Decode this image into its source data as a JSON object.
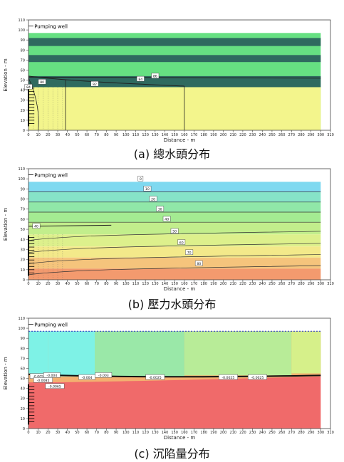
{
  "captions": [
    "(a)  總水頭分布",
    "(b)  壓力水頭分布",
    "(c)  沉陷量分布"
  ],
  "well_label": "Pumping well",
  "xlabel": "Distance - m",
  "ylabel": "Elevation - m",
  "x_ticks": [
    0,
    10,
    20,
    30,
    40,
    50,
    60,
    70,
    80,
    90,
    100,
    110,
    120,
    130,
    140,
    150,
    160,
    170,
    180,
    190,
    200,
    210,
    220,
    230,
    240,
    250,
    260,
    270,
    280,
    290,
    300,
    310
  ],
  "y_ticks": [
    0,
    10,
    20,
    30,
    40,
    50,
    60,
    70,
    80,
    90,
    100,
    110
  ],
  "colors": {
    "green": "#66e082",
    "dark_teal": "#2f6a5f",
    "yellow": "#f3f58c",
    "red": "#f06a6a",
    "cyan": "#7ef2e6",
    "mint": "#9ae8a8",
    "lime": "#d6f08a"
  },
  "panel_a": {
    "contour_labels": [
      "80",
      "82",
      "84",
      "86",
      "84"
    ]
  },
  "panel_b": {
    "contour_labels": [
      "0",
      "10",
      "20",
      "30",
      "40",
      "50",
      "60",
      "70",
      "80",
      "40"
    ]
  },
  "panel_c": {
    "contour_labels": [
      "-0.005",
      "-0.004",
      "-0.004",
      "-0.003",
      "-0.0025",
      "-0.0025",
      "-0.0025",
      "-0.0085",
      "-0.0065"
    ]
  }
}
